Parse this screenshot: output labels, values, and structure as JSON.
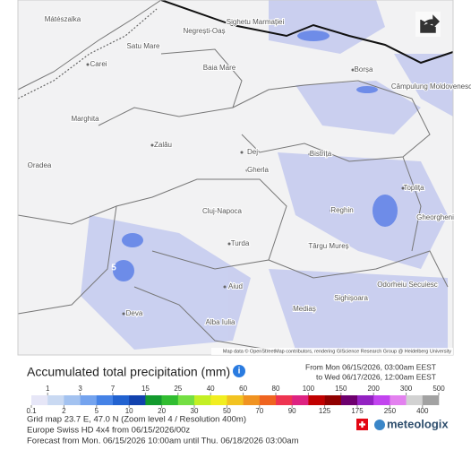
{
  "map": {
    "labels": [
      "Mátészalka",
      "Satu Mare",
      "Carei",
      "Negrești-Oaș",
      "Sighetu Marmației",
      "Baia Mare",
      "Borșa",
      "Câmpulung Moldovenesc",
      "Marghita",
      "Zalău",
      "Oradea",
      "Bistrița",
      "Dej",
      "Gherla",
      "Toplița",
      "Reghin",
      "Cluj-Napoca",
      "Gheorgheni",
      "Turda",
      "Târgu Mureș",
      "Odorheiu Secuiesc",
      "Sighișoara",
      "Mediaș",
      "Aiud",
      "Deva",
      "Alba Iulia"
    ],
    "marker": "5",
    "attribution": "Map data © OpenStreetMap contributors, rendering GIScience Research Group @ Heidelberg University"
  },
  "legend": {
    "title": "Accumulated total precipitation (mm)",
    "from": "From Mon 06/15/2026, 03:00am EEST",
    "to": "to Wed 06/17/2026, 12:00am EEST",
    "bounds": [
      0.1,
      1,
      2,
      3,
      5,
      7,
      10,
      15,
      20,
      25,
      30,
      40,
      50,
      60,
      70,
      80,
      90,
      100,
      125,
      150,
      175,
      200,
      250,
      300,
      400,
      500
    ],
    "colors": [
      "#e6e6f7",
      "#c9d9f2",
      "#a3c2f0",
      "#74a3ee",
      "#4582e6",
      "#2262d0",
      "#1242ae",
      "#139a2e",
      "#31bd31",
      "#74df43",
      "#c3ef24",
      "#f1ee21",
      "#f2c321",
      "#f09321",
      "#ef6420",
      "#ee3451",
      "#dd2381",
      "#c10000",
      "#900000",
      "#6e006e",
      "#9322c2",
      "#c244ef",
      "#e381ef",
      "#d2d2d2",
      "#a2a2a2"
    ]
  },
  "footer": {
    "lines": [
      "Grid map 23.7 E, 47.0 N (Zoom level 4 / Resolution 400m)",
      "Europe Swiss HD 4x4 from 06/15/2026/00z",
      "Forecast from Mon. 06/15/2026 10:00am until Thu. 06/18/2026 03:00am"
    ],
    "logo": "meteologix"
  }
}
